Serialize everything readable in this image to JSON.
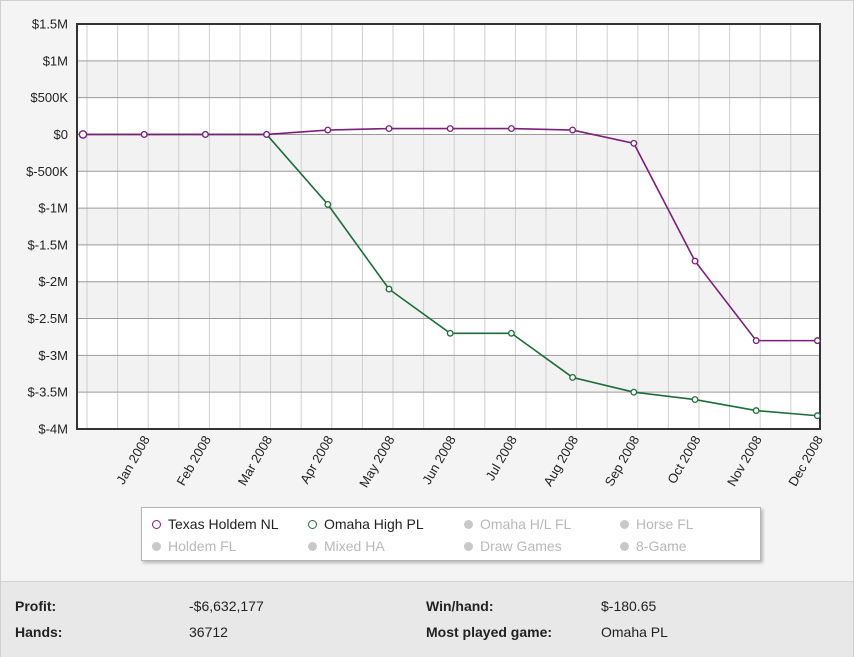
{
  "chart_data": {
    "type": "line",
    "categories": [
      "",
      "Jan 2008",
      "Feb 2008",
      "Mar 2008",
      "Apr 2008",
      "May 2008",
      "Jun 2008",
      "Jul 2008",
      "Aug 2008",
      "Sep 2008",
      "Oct 2008",
      "Nov 2008",
      "Dec 2008"
    ],
    "y_ticks": [
      "$1.5M",
      "$1M",
      "$500K",
      "$0",
      "$-500K",
      "$-1M",
      "$-1.5M",
      "$-2M",
      "$-2.5M",
      "$-3M",
      "$-3.5M",
      "$-4M"
    ],
    "y_tick_values": [
      1500000,
      1000000,
      500000,
      0,
      -500000,
      -1000000,
      -1500000,
      -2000000,
      -2500000,
      -3000000,
      -3500000,
      -4000000
    ],
    "ylim": [
      -4000000,
      1500000
    ],
    "grid": true,
    "series": [
      {
        "name": "Texas Holdem NL",
        "color": "#7b1f7a",
        "values": [
          0,
          0,
          0,
          0,
          60000,
          80000,
          80000,
          80000,
          60000,
          -120000,
          -1720000,
          -2800000,
          -2800000
        ]
      },
      {
        "name": "Omaha High PL",
        "color": "#1f6b3a",
        "values": [
          0,
          0,
          0,
          0,
          -950000,
          -2100000,
          -2700000,
          -2700000,
          -3300000,
          -3500000,
          -3600000,
          -3750000,
          -3820000
        ]
      }
    ],
    "legend_position": "bottom"
  },
  "legend": {
    "items": [
      {
        "label": "Texas Holdem NL",
        "active": true,
        "color": "#7b1f7a"
      },
      {
        "label": "Omaha High PL",
        "active": true,
        "color": "#1f6b3a"
      },
      {
        "label": "Omaha H/L FL",
        "active": false
      },
      {
        "label": "Horse FL",
        "active": false
      },
      {
        "label": "Holdem FL",
        "active": false
      },
      {
        "label": "Mixed HA",
        "active": false
      },
      {
        "label": "Draw Games",
        "active": false
      },
      {
        "label": "8-Game",
        "active": false
      }
    ]
  },
  "stats": {
    "profit_label": "Profit:",
    "profit_value": "-$6,632,177",
    "hands_label": "Hands:",
    "hands_value": "36712",
    "winhand_label": "Win/hand:",
    "winhand_value": "$-180.65",
    "mostplayed_label": "Most played game:",
    "mostplayed_value": "Omaha PL"
  }
}
